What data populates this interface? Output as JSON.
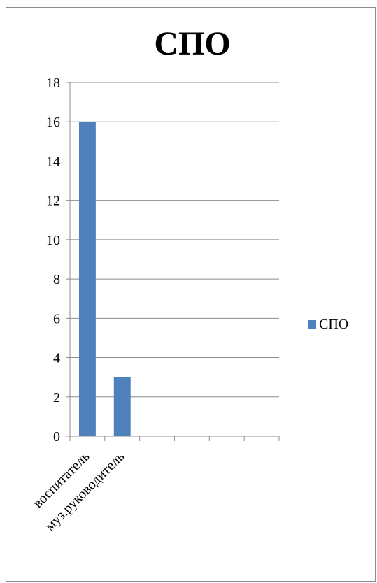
{
  "chart_data": {
    "type": "bar",
    "title": "СПО",
    "categories": [
      "воспитатель",
      "муз.руководитель",
      "",
      "",
      "",
      ""
    ],
    "series": [
      {
        "name": "СПО",
        "values": [
          16,
          3,
          null,
          null,
          null,
          null
        ]
      }
    ],
    "ylim": [
      0,
      18
    ],
    "y_ticks": [
      0,
      2,
      4,
      6,
      8,
      10,
      12,
      14,
      16,
      18
    ],
    "grid": true,
    "legend": "right",
    "colors": {
      "bar": "#4f81bd",
      "grid": "#8c8c8c",
      "axis": "#8c8c8c",
      "border": "#8c8c8c"
    }
  }
}
